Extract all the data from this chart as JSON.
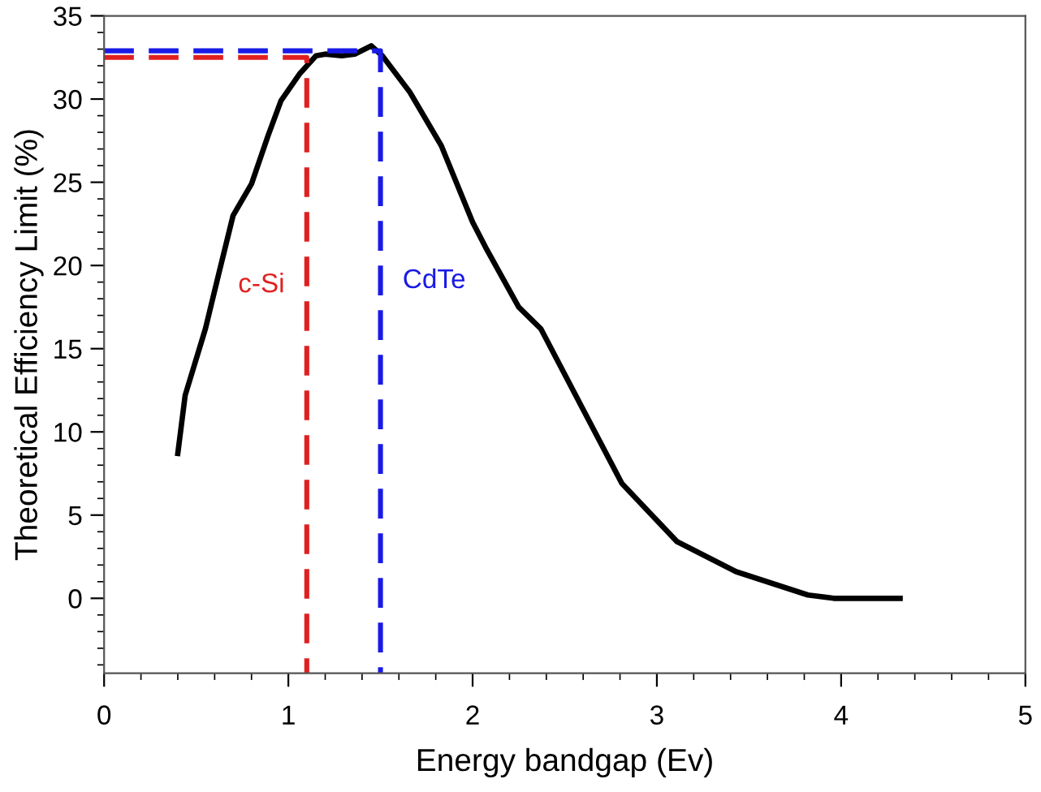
{
  "chart_data": {
    "type": "line",
    "xlabel": "Energy bandgap (Ev)",
    "ylabel": "Theoretical Efficiency Limit (%)",
    "xlim": [
      0,
      5
    ],
    "xticks": [
      0,
      1,
      2,
      3,
      4,
      5
    ],
    "ylim": [
      -4.5,
      35
    ],
    "yticks": [
      0,
      5,
      10,
      15,
      20,
      25,
      30,
      35
    ],
    "grid": false,
    "legend": false,
    "marker": "none",
    "series": [
      {
        "color": "#000000",
        "line_style": "solid",
        "x": [
          0.4,
          0.44,
          0.55,
          0.62,
          0.7,
          0.8,
          0.89,
          0.96,
          1.06,
          1.15,
          1.2,
          1.29,
          1.36,
          1.45,
          1.51,
          1.66,
          1.83,
          2.0,
          2.07,
          2.25,
          2.37,
          2.81,
          3.11,
          3.43,
          3.82,
          3.96,
          4.32
        ],
        "values": [
          8.7,
          12.2,
          16.2,
          19.4,
          23.0,
          24.9,
          27.8,
          29.9,
          31.5,
          32.6,
          32.7,
          32.6,
          32.7,
          33.2,
          32.6,
          30.4,
          27.2,
          22.6,
          21.1,
          17.5,
          16.2,
          6.9,
          3.4,
          1.6,
          0.2,
          0,
          0
        ]
      },
      {
        "name": "c-Si",
        "color": "#e02020",
        "line_style": "dashed",
        "x": [
          0,
          1.1,
          1.1
        ],
        "values": [
          32.5,
          32.5,
          -4.5
        ]
      },
      {
        "name": "CdTe",
        "color": "#1a1ae6",
        "line_style": "dashed",
        "x": [
          0,
          1.5,
          1.5
        ],
        "values": [
          32.9,
          32.9,
          -4.5
        ]
      }
    ]
  }
}
